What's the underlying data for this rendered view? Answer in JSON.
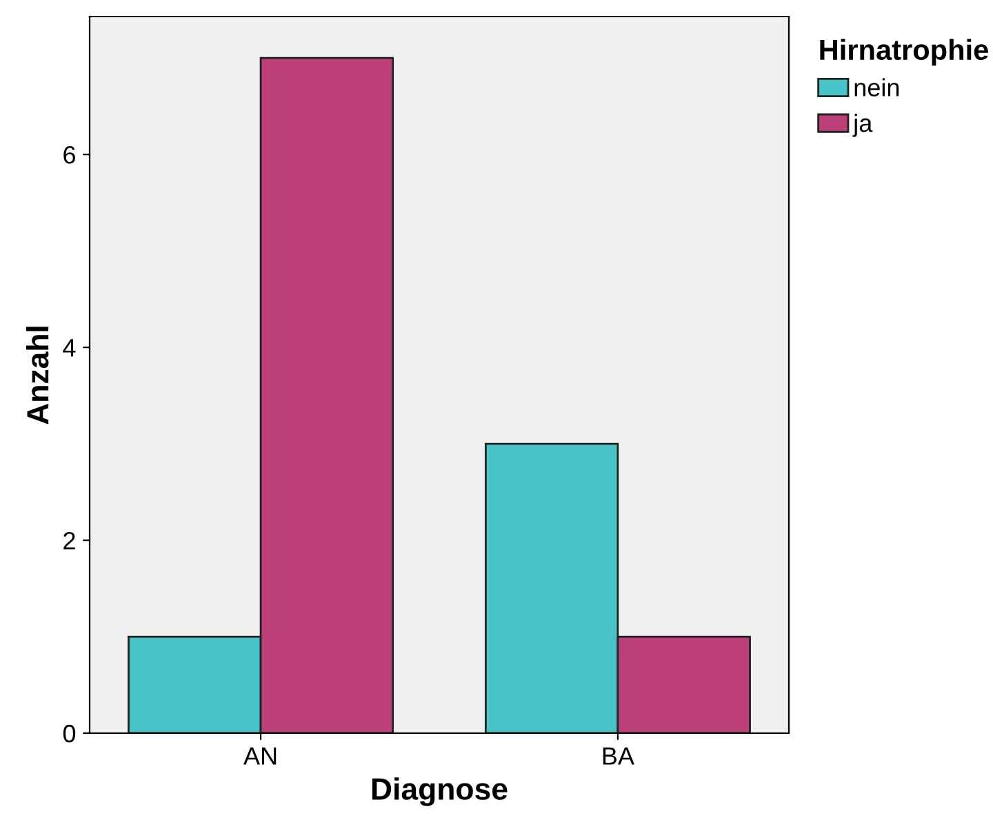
{
  "chart_data": {
    "type": "bar",
    "xlabel": "Diagnose",
    "ylabel": "Anzahl",
    "legend_title": "Hirnatrophie",
    "categories": [
      "AN",
      "BA"
    ],
    "series": [
      {
        "name": "nein",
        "color": "#48c4c8",
        "values": [
          1,
          3
        ]
      },
      {
        "name": "ja",
        "color": "#bc3f7a",
        "values": [
          7,
          1
        ]
      }
    ],
    "ylim": [
      0,
      7.43
    ],
    "yticks": [
      0,
      2,
      4,
      6
    ],
    "grid": false,
    "legend": "top right"
  }
}
